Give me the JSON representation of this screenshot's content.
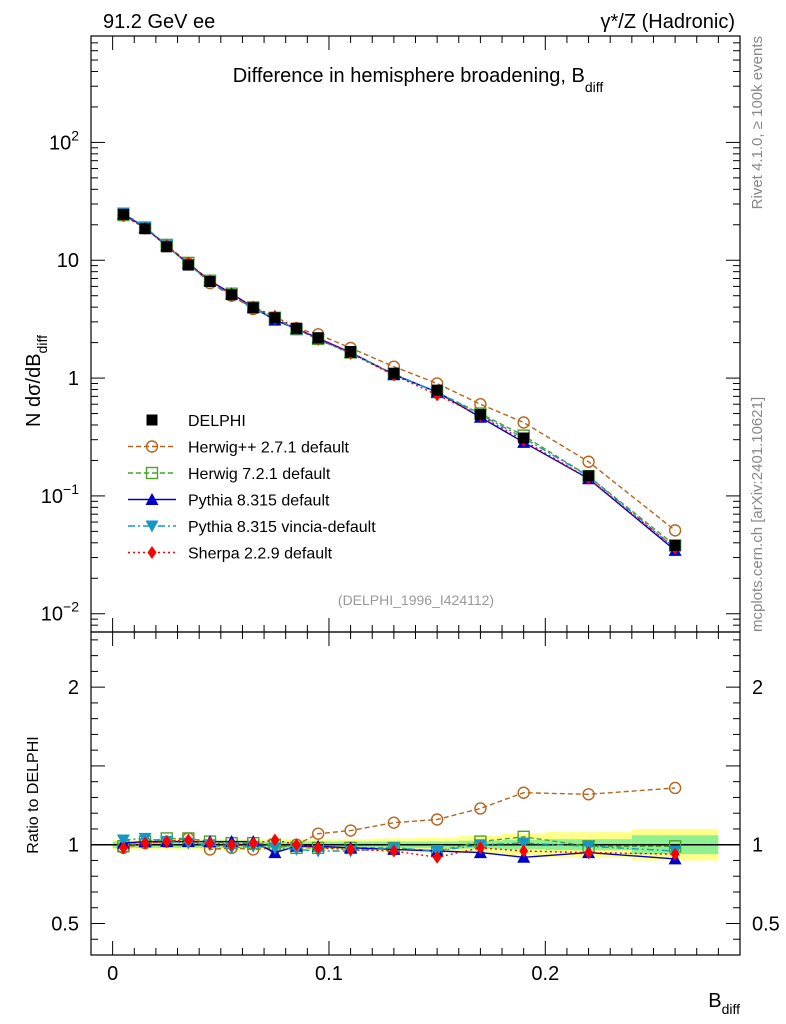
{
  "chart_data": {
    "type": "line",
    "title": "Difference in hemisphere broadening, B",
    "title_sub": "diff",
    "header_left": "91.2 GeV ee",
    "header_right": "γ*/Z (Hadronic)",
    "side_top": "Rivet 4.1.0, ≥ 100k events",
    "side_bottom": "mcplots.cern.ch [arXiv:2401.10621]",
    "analysis_id": "(DELPHI_1996_I424112)",
    "ylabel": "N  dσ/dB",
    "ylabel_sub": "diff",
    "ratio_ylabel": "Ratio to DELPHI",
    "xlabel": "B",
    "xlabel_sub": "diff",
    "xlim": [
      -0.01,
      0.29
    ],
    "ylim": [
      0.007,
      800
    ],
    "yscale": "log",
    "ratio_ylim": [
      0.3,
      2.35
    ],
    "x_ticks": [
      {
        "v": 0,
        "label": "0"
      },
      {
        "v": 0.1,
        "label": "0.1"
      },
      {
        "v": 0.2,
        "label": "0.2"
      }
    ],
    "y_ticks": [
      {
        "v": 0.01,
        "label": "10",
        "sup": "−2"
      },
      {
        "v": 0.1,
        "label": "10",
        "sup": "−1"
      },
      {
        "v": 1,
        "label": "1",
        "sup": ""
      },
      {
        "v": 10,
        "label": "10",
        "sup": ""
      },
      {
        "v": 100,
        "label": "10",
        "sup": "2"
      }
    ],
    "ratio_ticks": [
      {
        "v": 0.5,
        "label": "0.5"
      },
      {
        "v": 1,
        "label": "1"
      },
      {
        "v": 2,
        "label": "2"
      }
    ],
    "x": [
      0.005,
      0.015,
      0.025,
      0.035,
      0.045,
      0.055,
      0.065,
      0.075,
      0.085,
      0.095,
      0.11,
      0.13,
      0.15,
      0.17,
      0.19,
      0.22,
      0.26
    ],
    "bin_edges": [
      0,
      0.01,
      0.02,
      0.03,
      0.04,
      0.05,
      0.06,
      0.07,
      0.08,
      0.09,
      0.1,
      0.12,
      0.14,
      0.16,
      0.18,
      0.2,
      0.24,
      0.28
    ],
    "band_inner": [
      0.02,
      0.02,
      0.02,
      0.02,
      0.02,
      0.02,
      0.02,
      0.02,
      0.02,
      0.02,
      0.02,
      0.02,
      0.02,
      0.025,
      0.03,
      0.035,
      0.06
    ],
    "band_outer": [
      0.03,
      0.03,
      0.03,
      0.03,
      0.035,
      0.035,
      0.035,
      0.035,
      0.035,
      0.035,
      0.035,
      0.04,
      0.045,
      0.055,
      0.07,
      0.08,
      0.1
    ],
    "series": [
      {
        "name": "DELPHI",
        "color": "#000000",
        "marker": "square",
        "dash": "",
        "is_data": true,
        "values": [
          24.5,
          18.5,
          13.0,
          9.1,
          6.6,
          5.1,
          3.95,
          3.25,
          2.65,
          2.2,
          1.68,
          1.1,
          0.79,
          0.49,
          0.31,
          0.148,
          0.038
        ],
        "ratio": [
          1,
          1,
          1,
          1,
          1,
          1,
          1,
          1,
          1,
          1,
          1,
          1,
          1,
          1,
          1,
          1,
          1
        ]
      },
      {
        "name": "Herwig++ 2.7.1 default",
        "color": "#b8651b",
        "marker": "circle",
        "dash": "5,3",
        "is_data": false,
        "values": [
          24.0,
          18.8,
          13.3,
          9.4,
          6.4,
          5.0,
          3.85,
          3.2,
          2.65,
          2.35,
          1.8,
          1.25,
          0.9,
          0.6,
          0.42,
          0.195,
          0.051
        ],
        "ratio": [
          0.98,
          1.01,
          1.02,
          1.04,
          0.97,
          0.98,
          0.97,
          0.98,
          1.0,
          1.07,
          1.09,
          1.14,
          1.16,
          1.23,
          1.33,
          1.32,
          1.36
        ]
      },
      {
        "name": "Herwig 7.2.1 default",
        "color": "#4ca22a",
        "marker": "square-open",
        "dash": "5,3",
        "is_data": false,
        "values": [
          24.2,
          18.9,
          13.5,
          9.5,
          6.7,
          5.2,
          3.98,
          3.25,
          2.6,
          2.15,
          1.65,
          1.08,
          0.76,
          0.5,
          0.325,
          0.147,
          0.038
        ],
        "ratio": [
          0.99,
          1.02,
          1.04,
          1.04,
          1.02,
          1.01,
          1.01,
          1.0,
          0.98,
          0.98,
          0.98,
          0.98,
          0.96,
          1.02,
          1.05,
          0.99,
          0.99
        ]
      },
      {
        "name": "Pythia 8.315 default",
        "color": "#0000cd",
        "marker": "triangle-up",
        "dash": "",
        "is_data": false,
        "values": [
          24.8,
          18.9,
          13.2,
          9.3,
          6.7,
          5.2,
          4.0,
          3.1,
          2.62,
          2.18,
          1.65,
          1.07,
          0.76,
          0.465,
          0.285,
          0.14,
          0.0345
        ],
        "ratio": [
          1.01,
          1.02,
          1.02,
          1.02,
          1.02,
          1.02,
          1.02,
          0.95,
          0.99,
          0.99,
          0.98,
          0.97,
          0.96,
          0.95,
          0.92,
          0.95,
          0.91
        ]
      },
      {
        "name": "Pythia 8.315 vincia-default",
        "color": "#1798c4",
        "marker": "triangle-down",
        "dash": "7,3,2,3",
        "is_data": false,
        "values": [
          25.2,
          19.2,
          13.3,
          9.2,
          6.6,
          5.0,
          3.9,
          3.2,
          2.6,
          2.12,
          1.63,
          1.08,
          0.76,
          0.49,
          0.31,
          0.147,
          0.036
        ],
        "ratio": [
          1.03,
          1.04,
          1.02,
          1.01,
          1.0,
          0.98,
          0.99,
          0.98,
          0.97,
          0.96,
          0.96,
          0.98,
          0.96,
          1.0,
          1.01,
          0.99,
          0.96
        ]
      },
      {
        "name": "Sherpa 2.2.9 default",
        "color": "#ff0000",
        "marker": "diamond",
        "dash": "2,3",
        "is_data": false,
        "values": [
          24.0,
          18.7,
          13.3,
          9.4,
          6.7,
          5.1,
          4.0,
          3.35,
          2.65,
          2.15,
          1.62,
          1.06,
          0.72,
          0.48,
          0.295,
          0.141,
          0.036
        ],
        "ratio": [
          0.98,
          1.01,
          1.02,
          1.03,
          1.01,
          1.0,
          1.01,
          1.03,
          1.0,
          0.98,
          0.97,
          0.96,
          0.92,
          0.98,
          0.96,
          0.95,
          0.94
        ]
      }
    ]
  }
}
